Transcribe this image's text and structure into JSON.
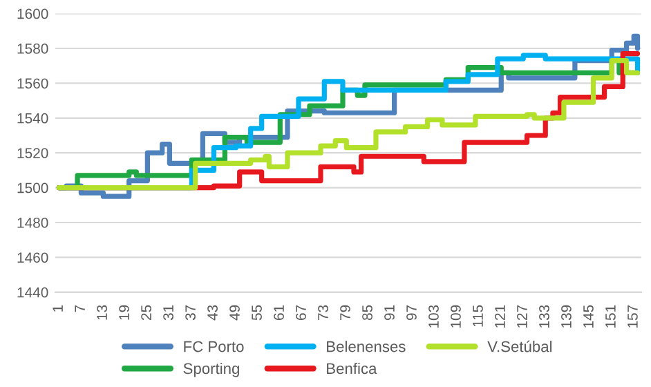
{
  "chart_data": {
    "type": "step",
    "xlim": [
      0,
      159
    ],
    "xticks": [
      1,
      7,
      13,
      19,
      25,
      31,
      37,
      43,
      49,
      55,
      61,
      67,
      73,
      79,
      85,
      91,
      97,
      103,
      109,
      115,
      121,
      127,
      133,
      139,
      145,
      151,
      157
    ],
    "ylim": [
      1440,
      1600
    ],
    "yticks": [
      1440,
      1460,
      1480,
      1500,
      1520,
      1540,
      1560,
      1580,
      1600
    ],
    "grid": "y",
    "legend": "bottom",
    "marker": "none",
    "line_style": "solid",
    "series": [
      {
        "name": "FC Porto",
        "color": "#4f81bd",
        "x": [
          1,
          3,
          7,
          13,
          20,
          25,
          29,
          31,
          40,
          46,
          50,
          60,
          63,
          68,
          73,
          92,
          121,
          123,
          141,
          148,
          151,
          155,
          157,
          158
        ],
        "values": [
          1500,
          1501,
          1497,
          1495,
          1504,
          1520,
          1525,
          1514,
          1531,
          1526,
          1529,
          1529,
          1544,
          1544,
          1543,
          1556,
          1566,
          1563,
          1573,
          1573,
          1579,
          1583,
          1587,
          1580
        ]
      },
      {
        "name": "Sporting",
        "color": "#1fa843",
        "x": [
          1,
          6,
          20,
          22,
          37,
          46,
          52,
          61,
          69,
          78,
          82,
          84,
          106,
          112,
          121,
          151,
          153,
          157
        ],
        "values": [
          1500,
          1507,
          1509,
          1507,
          1516,
          1529,
          1526,
          1542,
          1547,
          1556,
          1553,
          1559,
          1562,
          1569,
          1566,
          1573,
          1566,
          1566
        ]
      },
      {
        "name": "Belenenses",
        "color": "#00b0f0",
        "x": [
          1,
          37,
          43,
          49,
          53,
          56,
          66,
          73,
          78,
          106,
          112,
          120,
          127,
          133,
          157,
          158
        ],
        "values": [
          1500,
          1510,
          1523,
          1524,
          1534,
          1541,
          1551,
          1561,
          1556,
          1561,
          1565,
          1574,
          1576,
          1574,
          1574,
          1566
        ]
      },
      {
        "name": "Benfica",
        "color": "#e8181f",
        "x": [
          1,
          43,
          50,
          53,
          56,
          72,
          81,
          83,
          100,
          111,
          128,
          133,
          135,
          137,
          149,
          154,
          158
        ],
        "values": [
          1500,
          1501,
          1509,
          1509,
          1504,
          1512,
          1509,
          1518,
          1515,
          1526,
          1530,
          1540,
          1543,
          1552,
          1558,
          1577,
          1577
        ]
      },
      {
        "name": "V.Setúbal",
        "color": "#b3e02b",
        "x": [
          1,
          38,
          53,
          57,
          58,
          63,
          72,
          76,
          79,
          87,
          95,
          101,
          105,
          114,
          128,
          130,
          138,
          146,
          151,
          155,
          158
        ],
        "values": [
          1500,
          1514,
          1516,
          1518,
          1512,
          1520,
          1524,
          1527,
          1523,
          1532,
          1535,
          1539,
          1536,
          1541,
          1542,
          1540,
          1549,
          1563,
          1573,
          1566,
          1566
        ]
      }
    ]
  }
}
